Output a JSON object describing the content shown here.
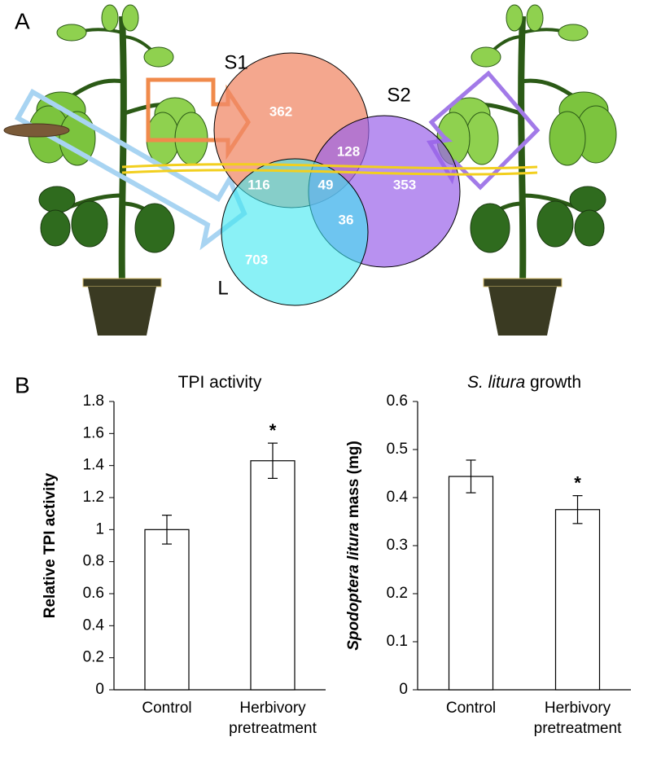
{
  "panel_a": {
    "label": "A",
    "sets": [
      "S1",
      "S2",
      "L"
    ],
    "regions": {
      "s1_only": "362",
      "s1_s2": "128",
      "s1_l": "116",
      "all": "49",
      "s2_only": "353",
      "s2_l": "36",
      "l_only": "703"
    }
  },
  "panel_b": {
    "label": "B"
  },
  "chart_data": [
    {
      "type": "bar",
      "title": [
        {
          "text": "TPI activity",
          "italic": false
        }
      ],
      "ylabel": [
        {
          "text": "Relative TPI activity",
          "italic": false
        }
      ],
      "categories": [
        "Control",
        "Herbivory pretreatment"
      ],
      "values": [
        1.0,
        1.43
      ],
      "errors": [
        0.09,
        0.11
      ],
      "significance": [
        null,
        "*"
      ],
      "color": "#ffffff",
      "ylim": [
        0,
        1.8
      ],
      "yticks": [
        0,
        0.2,
        0.4,
        0.6,
        0.8,
        1,
        1.2,
        1.4,
        1.6,
        1.8
      ]
    },
    {
      "type": "bar",
      "title": [
        {
          "text": "S. litura",
          "italic": true
        },
        {
          "text": " growth",
          "italic": false
        }
      ],
      "ylabel": [
        {
          "text": "Spodoptera litura",
          "italic": true
        },
        {
          "text": " mass (mg)",
          "italic": false
        }
      ],
      "categories": [
        "Control",
        "Herbivory pretreatment"
      ],
      "values": [
        0.444,
        0.375
      ],
      "errors": [
        0.034,
        0.029
      ],
      "significance": [
        null,
        "*"
      ],
      "color": "#ffffff",
      "ylim": [
        0,
        0.6
      ],
      "yticks": [
        0,
        0.1,
        0.2,
        0.3,
        0.4,
        0.5,
        0.6
      ]
    }
  ]
}
